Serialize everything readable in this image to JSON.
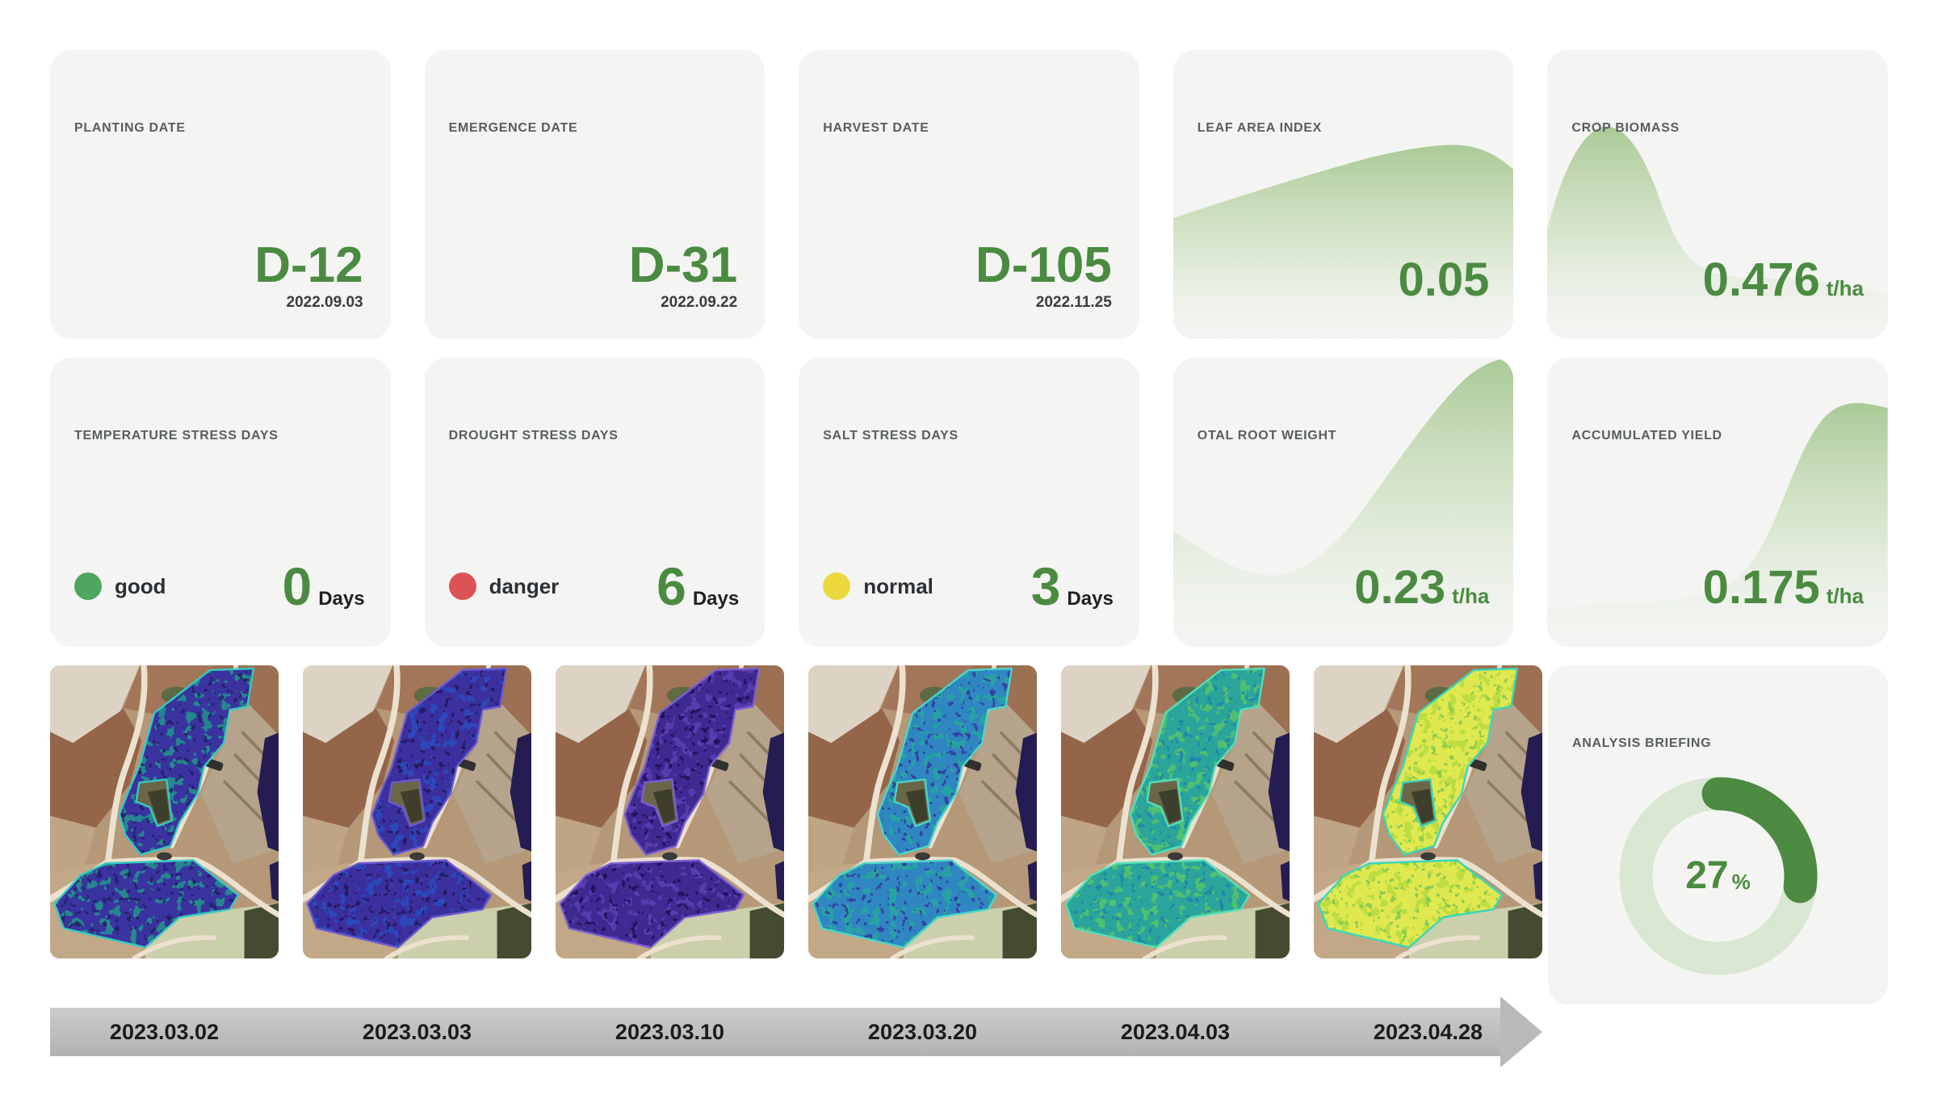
{
  "cards": {
    "planting": {
      "title": "PLANTING DATE",
      "value": "D-12",
      "date": "2022.09.03"
    },
    "emergence": {
      "title": "EMERGENCE DATE",
      "value": "D-31",
      "date": "2022.09.22"
    },
    "harvest": {
      "title": "HARVEST DATE",
      "value": "D-105",
      "date": "2022.11.25"
    },
    "lai": {
      "title": "LEAF AREA INDEX",
      "value": "0.05",
      "unit": ""
    },
    "biomass": {
      "title": "CROP BIOMASS",
      "value": "0.476",
      "unit": "t/ha"
    },
    "temperature": {
      "title": "TEMPERATURE STRESS DAYS",
      "status": "good",
      "value": "0",
      "unit": "Days",
      "dot_color": "#4da55e"
    },
    "drought": {
      "title": "DROUGHT STRESS DAYS",
      "status": "danger",
      "value": "6",
      "unit": "Days",
      "dot_color": "#dc5356"
    },
    "salt": {
      "title": "SALT STRESS DAYS",
      "status": "normal",
      "value": "3",
      "unit": "Days",
      "dot_color": "#ecd93d"
    },
    "root": {
      "title": "OTAL ROOT WEIGHT",
      "value": "0.23",
      "unit": "t/ha"
    },
    "yield": {
      "title": "ACCUMULATED YIELD",
      "value": "0.175",
      "unit": "t/ha"
    },
    "briefing": {
      "title": "ANALYSIS BRIEFING",
      "percent": "27",
      "percent_symbol": "%"
    }
  },
  "colors": {
    "accent_green": "#4b8b41",
    "card_background": "#f4f5f3",
    "chart_fill_top": "#a5c791",
    "donut_track": "#d9e6d1",
    "donut_arc": "#4d8a42",
    "timeline_band": "#bdbdbd"
  },
  "satellite": {
    "images": [
      {
        "date": "2023.03.02",
        "base": "#3a33a0",
        "speckle1": "#20968b",
        "speckle2": "#221a60",
        "edge": "#35c9c2"
      },
      {
        "date": "2023.03.03",
        "base": "#3c2f9e",
        "speckle1": "#2a4ec0",
        "speckle2": "#241457",
        "edge": "#6a5ad1"
      },
      {
        "date": "2023.03.10",
        "base": "#3f2a92",
        "speckle1": "#5b3fb5",
        "speckle2": "#1f1050",
        "edge": "#7a5fd1"
      },
      {
        "date": "2023.03.20",
        "base": "#2f86c0",
        "speckle1": "#27a79e",
        "speckle2": "#35309b",
        "edge": "#49d6c9"
      },
      {
        "date": "2023.04.03",
        "base": "#2ba49b",
        "speckle1": "#57c46a",
        "speckle2": "#1f7fae",
        "edge": "#52dfb8"
      },
      {
        "date": "2023.04.28",
        "base": "#e0e84f",
        "speckle1": "#b5dc3f",
        "speckle2": "#7ac653",
        "edge": "#3ad6b8"
      }
    ]
  }
}
